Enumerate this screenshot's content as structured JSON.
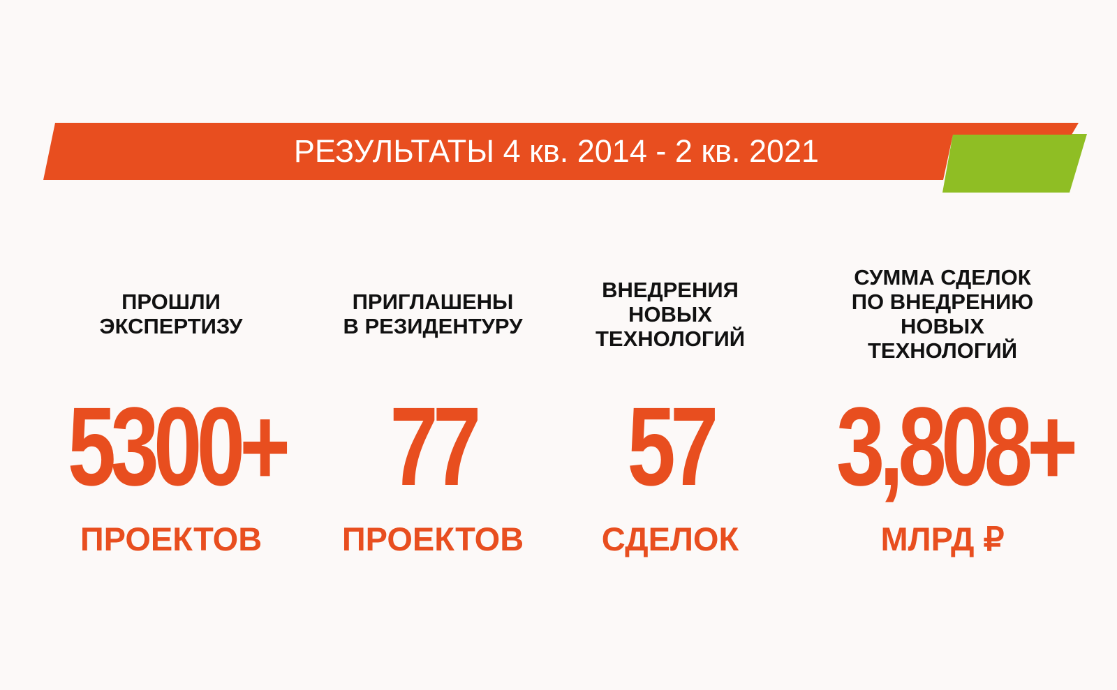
{
  "banner": {
    "title": "РЕЗУЛЬТАТЫ 4 кв. 2014 - 2 кв. 2021",
    "colors": {
      "orange": "#e84e1f",
      "green": "#8fbe24"
    }
  },
  "stats": [
    {
      "label_lines": [
        "ПРОШЛИ",
        "ЭКСПЕРТИЗУ"
      ],
      "value": "5300+",
      "unit": "ПРОЕКТОВ"
    },
    {
      "label_lines": [
        "ПРИГЛАШЕНЫ",
        "В РЕЗИДЕНТУРУ"
      ],
      "value": "77",
      "unit": "ПРОЕКТОВ"
    },
    {
      "label_lines": [
        "ВНЕДРЕНИЯ",
        "НОВЫХ",
        "ТЕХНОЛОГИЙ"
      ],
      "value": "57",
      "unit": "СДЕЛОК"
    },
    {
      "label_lines": [
        "СУММА СДЕЛОК",
        "ПО ВНЕДРЕНИЮ",
        "НОВЫХ",
        "ТЕХНОЛОГИЙ"
      ],
      "value": "3,808+",
      "unit": "МЛРД ₽"
    }
  ],
  "colors": {
    "accent": "#e84e1f",
    "text": "#111111",
    "background": "#fcf9f8"
  }
}
